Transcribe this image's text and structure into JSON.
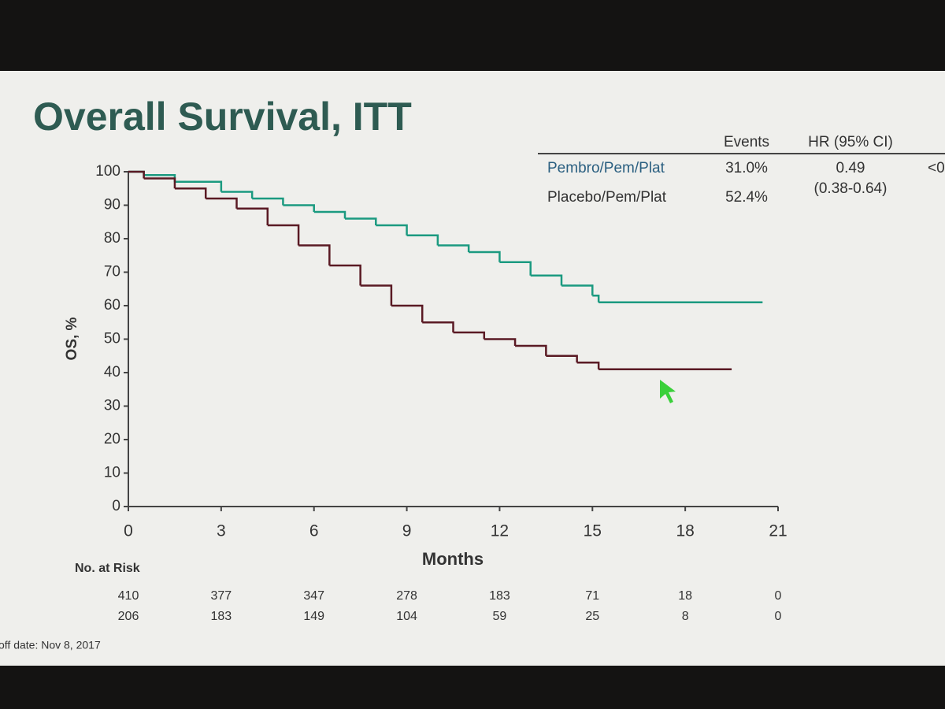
{
  "chart_data": {
    "type": "step",
    "title": "Overall Survival, ITT",
    "x_label": "Months",
    "y_label": "OS, %",
    "xlim": [
      0,
      21
    ],
    "xticks": [
      0,
      3,
      6,
      9,
      12,
      15,
      18,
      21
    ],
    "ylim": [
      0,
      100
    ],
    "yticks": [
      0,
      10,
      20,
      30,
      40,
      50,
      60,
      70,
      80,
      90,
      100
    ],
    "table_headers": [
      "Events",
      "HR (95% CI)"
    ],
    "series": [
      {
        "name": "Pembro/Pem/Plat",
        "color": "#1b9a80",
        "events": "31.0%",
        "hr": "0.49",
        "p": "<0",
        "x": [
          0,
          0.5,
          1.5,
          3,
          4,
          5,
          6,
          7,
          8,
          9,
          10,
          11,
          12,
          13,
          14,
          15,
          15.2,
          20.5
        ],
        "values": [
          100,
          99,
          97,
          94,
          92,
          90,
          88,
          86,
          84,
          81,
          78,
          76,
          73,
          69,
          66,
          63,
          61,
          61
        ]
      },
      {
        "name": "Placebo/Pem/Plat",
        "color": "#5a1a24",
        "events": "52.4%",
        "hr": "(0.38-0.64)",
        "x": [
          0,
          0.5,
          1.5,
          2.5,
          3.5,
          4.5,
          5.5,
          6.5,
          7.5,
          8.5,
          9.5,
          10.5,
          11.5,
          12.5,
          13.5,
          14.5,
          15.2,
          19.5
        ],
        "values": [
          100,
          98,
          95,
          92,
          89,
          84,
          78,
          72,
          66,
          60,
          55,
          52,
          50,
          48,
          45,
          43,
          41,
          41
        ]
      }
    ],
    "at_risk_label": "No. at Risk",
    "at_risk": [
      [
        410,
        377,
        347,
        278,
        183,
        71,
        18,
        0
      ],
      [
        206,
        183,
        149,
        104,
        59,
        25,
        8,
        0
      ]
    ],
    "footnote": "off date: Nov 8, 2017"
  }
}
